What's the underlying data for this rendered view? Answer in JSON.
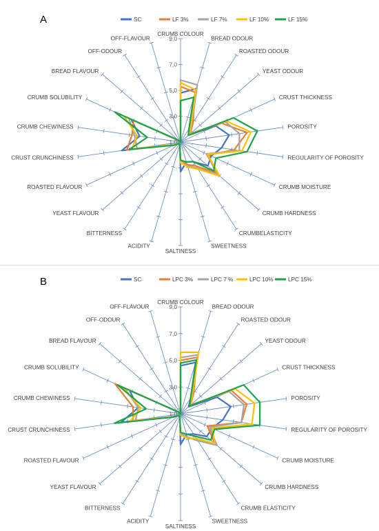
{
  "colors": {
    "SC": "#4472c4",
    "LF_or_LPC_3": "#ed7d31",
    "LF_or_LPC_7": "#a5a5a5",
    "LF_or_LPC_10": "#ffc000",
    "LF_or_LPC_15": "#1fa34a",
    "axis": "#6f8fc7",
    "ring": "#d9d9d9"
  },
  "chart_data": [
    {
      "type": "radar",
      "panel_label": "A",
      "ticks": [
        "1,0",
        "3,0",
        "5,0",
        "7,0",
        "9,0"
      ],
      "range": [
        1,
        9
      ],
      "categories": [
        "CRUMB COLOUR",
        "BREAD ODOUR",
        "ROASTED ODOUR",
        "YEAST ODOUR",
        "CRUST THICKNESS",
        "POROSITY",
        "REGULARITY OF POROSITY",
        "CRUMB MOISTURE",
        "CRUMB HARDNESS",
        "CRUMBELASTICITY",
        "SWEETNESS",
        "SALTINESS",
        "ACIDITY",
        "BITTERNESS",
        "YEAST FLAVOUR",
        "ROASTED FLAVOUR",
        "CRUST CRUNCHINESS",
        "CRUMB CHEWINESS",
        "CRUMB SOLUBILITY",
        "BREAD FLAVOUR",
        "OFF-ODOUR",
        "OFF-FLAVOUR"
      ],
      "series": [
        {
          "name": "SC",
          "color_key": "SC",
          "values": [
            4.8,
            5.3,
            2.4,
            1.8,
            4.0,
            4.8,
            4.2,
            3.6,
            3.8,
            2.8,
            2.6,
            3.3,
            1.2,
            1.2,
            1.2,
            1.5,
            5.6,
            4.2,
            5.2,
            1.2,
            1.0,
            1.0
          ]
        },
        {
          "name": "LF 3%",
          "color_key": "LF_or_LPC_3",
          "values": [
            5.3,
            5.0,
            2.8,
            2.0,
            4.5,
            6.2,
            5.2,
            3.4,
            4.6,
            3.2,
            2.8,
            2.4,
            1.2,
            1.2,
            1.2,
            1.5,
            5.2,
            4.8,
            5.0,
            1.2,
            1.0,
            1.0
          ]
        },
        {
          "name": "LF 7%",
          "color_key": "LF_or_LPC_7",
          "values": [
            5.8,
            5.6,
            2.6,
            2.0,
            4.8,
            5.6,
            5.6,
            3.2,
            4.8,
            3.4,
            2.9,
            2.6,
            1.2,
            1.2,
            1.2,
            1.5,
            4.4,
            4.6,
            5.4,
            1.2,
            1.0,
            1.0
          ]
        },
        {
          "name": "LF 10%",
          "color_key": "LF_or_LPC_10",
          "values": [
            5.6,
            5.2,
            2.5,
            1.9,
            4.9,
            6.5,
            5.8,
            3.3,
            5.0,
            3.5,
            3.0,
            2.6,
            1.2,
            1.2,
            1.2,
            1.5,
            4.8,
            4.4,
            5.8,
            1.2,
            1.0,
            1.0
          ]
        },
        {
          "name": "LF 15%",
          "color_key": "LF_or_LPC_15",
          "values": [
            4.2,
            4.6,
            2.2,
            1.8,
            5.5,
            7.0,
            6.2,
            4.0,
            4.4,
            2.8,
            2.6,
            2.4,
            1.2,
            1.2,
            1.2,
            1.6,
            5.0,
            3.6,
            6.6,
            1.2,
            1.0,
            1.0
          ]
        }
      ]
    },
    {
      "type": "radar",
      "panel_label": "B",
      "ticks": [
        "1,0",
        "3,0",
        "5,0",
        "7,0",
        "9,0"
      ],
      "range": [
        1,
        9
      ],
      "categories": [
        "CRUMB COLOUR",
        "BREAD ODOUR",
        "ROASTED ODOUR",
        "YEAST ODOUR",
        "CRUST THICKNESS",
        "POROSITY",
        "REGULARITY OF POROSITY",
        "CRUMB MOISTURE",
        "CRUMB HARDNESS",
        "CRUMB ELASTICITY",
        "SWEETNESS",
        "SALTINESS",
        "ACIDITY",
        "BITTERNESS",
        "YEAST FLAVOUR",
        "ROASTED FLAVOUR",
        "CRUST CRUNCHINESS",
        "CRUMB CHEWINESS",
        "CRUMB SOLUBILITY",
        "BREAD FLAVOUR",
        "OFF-ODOUR",
        "OFF-FLAVOUR"
      ],
      "series": [
        {
          "name": "SC",
          "color_key": "SC",
          "values": [
            4.6,
            5.0,
            2.4,
            1.8,
            4.0,
            4.8,
            4.2,
            3.6,
            3.6,
            2.8,
            2.6,
            3.3,
            1.2,
            1.2,
            1.2,
            1.5,
            5.5,
            4.2,
            5.2,
            1.2,
            1.0,
            1.0
          ]
        },
        {
          "name": "LPC 3%",
          "color_key": "LF_or_LPC_3",
          "values": [
            5.0,
            5.4,
            2.8,
            2.0,
            5.2,
            6.0,
            5.6,
            3.2,
            4.4,
            3.4,
            2.8,
            2.6,
            1.2,
            1.2,
            1.2,
            1.6,
            4.6,
            4.6,
            6.4,
            1.2,
            1.0,
            1.0
          ]
        },
        {
          "name": "LPC 7 %",
          "color_key": "LF_or_LPC_7",
          "values": [
            5.2,
            5.6,
            2.6,
            2.0,
            5.0,
            5.8,
            5.6,
            3.4,
            4.6,
            3.4,
            2.8,
            2.5,
            1.2,
            1.2,
            1.2,
            1.5,
            4.4,
            4.2,
            5.6,
            1.2,
            1.0,
            1.0
          ]
        },
        {
          "name": "LPC 10%",
          "color_key": "LF_or_LPC_10",
          "values": [
            5.6,
            5.8,
            2.6,
            2.0,
            5.5,
            6.6,
            6.4,
            3.6,
            4.4,
            3.2,
            2.9,
            2.6,
            1.2,
            1.2,
            1.2,
            1.6,
            4.8,
            4.0,
            5.8,
            1.2,
            1.0,
            1.0
          ]
        },
        {
          "name": "LPC 15%",
          "color_key": "LF_or_LPC_15",
          "values": [
            4.8,
            5.2,
            2.4,
            1.9,
            6.2,
            7.0,
            7.0,
            3.8,
            4.0,
            3.0,
            2.6,
            2.4,
            1.2,
            1.2,
            1.2,
            1.6,
            6.0,
            3.6,
            6.2,
            1.2,
            1.0,
            1.0
          ]
        }
      ]
    }
  ]
}
